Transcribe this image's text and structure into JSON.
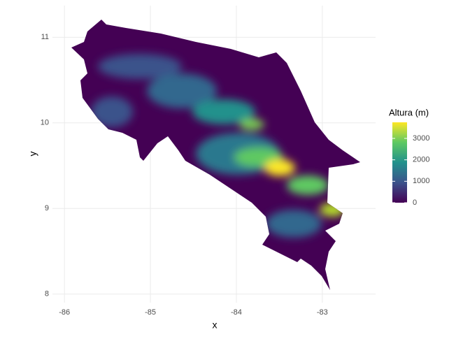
{
  "chart_data": {
    "type": "raster",
    "x_label": "x",
    "y_label": "y",
    "xlim": [
      -86.14,
      -82.38
    ],
    "xticks": [
      -86,
      -85,
      -84,
      -83
    ],
    "ylim": [
      7.9,
      11.37
    ],
    "yticks": [
      8,
      9,
      10,
      11
    ],
    "grid": true,
    "legend": {
      "title": "Altura (m)",
      "lim": [
        0,
        3750
      ],
      "ticks": [
        0,
        1000,
        2000,
        3000
      ]
    }
  }
}
